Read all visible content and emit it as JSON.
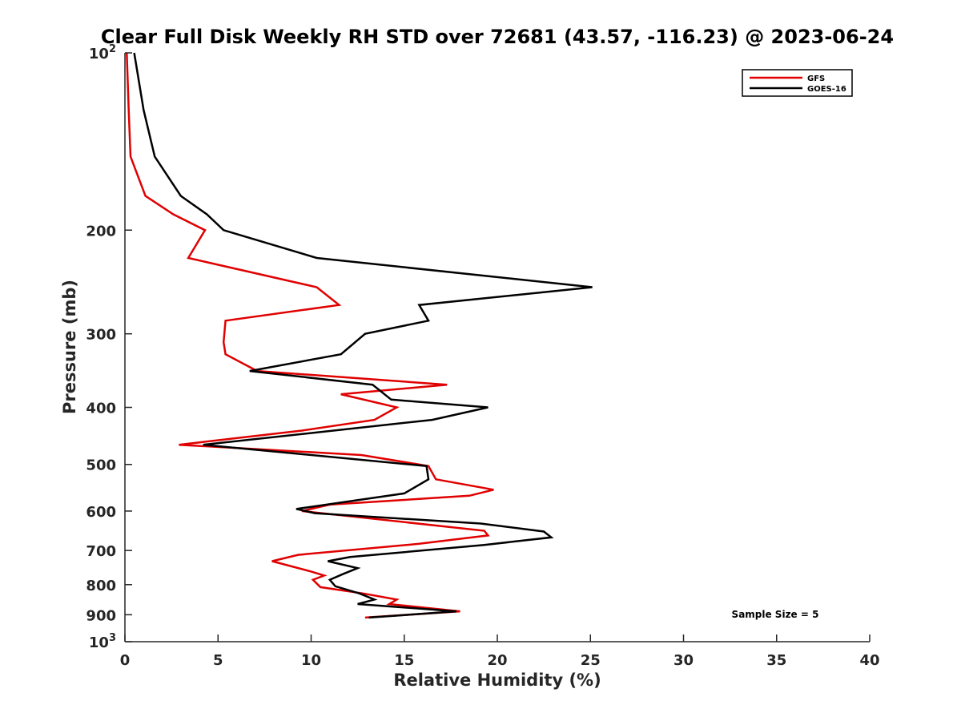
{
  "chart_data": {
    "type": "line",
    "title": "Clear Full Disk Weekly RH STD over 72681 (43.57, -116.23) @ 2023-06-24",
    "xlabel": "Relative Humidity (%)",
    "ylabel": "Pressure (mb)",
    "xlim": [
      0,
      40
    ],
    "ylim": [
      100,
      1000
    ],
    "y_scale": "log",
    "y_reversed": true,
    "x_ticks": [
      0,
      5,
      10,
      15,
      20,
      25,
      30,
      35,
      40
    ],
    "x_tick_labels": [
      "0",
      "5",
      "10",
      "15",
      "20",
      "25",
      "30",
      "35",
      "40"
    ],
    "y_ticks": [
      100,
      200,
      300,
      400,
      500,
      600,
      700,
      800,
      900,
      1000
    ],
    "y_tick_labels": [
      {
        "base": "10",
        "exp": "2"
      },
      {
        "base": "200",
        "exp": ""
      },
      {
        "base": "300",
        "exp": ""
      },
      {
        "base": "400",
        "exp": ""
      },
      {
        "base": "500",
        "exp": ""
      },
      {
        "base": "600",
        "exp": ""
      },
      {
        "base": "700",
        "exp": ""
      },
      {
        "base": "800",
        "exp": ""
      },
      {
        "base": "900",
        "exp": ""
      },
      {
        "base": "10",
        "exp": "3"
      }
    ],
    "grid": false,
    "legend_position": "top-right",
    "annotation": "Sample Size = 5",
    "series": [
      {
        "name": "GFS",
        "color": "#e00000",
        "points": [
          [
            0.1,
            100
          ],
          [
            0.2,
            125
          ],
          [
            0.3,
            150
          ],
          [
            1.1,
            175
          ],
          [
            2.6,
            188
          ],
          [
            4.3,
            200
          ],
          [
            3.4,
            223
          ],
          [
            10.3,
            250
          ],
          [
            11.5,
            268
          ],
          [
            5.4,
            285
          ],
          [
            5.3,
            310
          ],
          [
            5.4,
            325
          ],
          [
            7.1,
            347
          ],
          [
            17.3,
            366
          ],
          [
            11.6,
            380
          ],
          [
            14.6,
            400
          ],
          [
            13.4,
            420
          ],
          [
            9.5,
            438
          ],
          [
            2.9,
            463
          ],
          [
            12.7,
            482
          ],
          [
            16.3,
            503
          ],
          [
            16.7,
            530
          ],
          [
            19.8,
            552
          ],
          [
            18.5,
            565
          ],
          [
            11.0,
            585
          ],
          [
            9.5,
            600
          ],
          [
            19.3,
            648
          ],
          [
            19.5,
            660
          ],
          [
            15.8,
            682
          ],
          [
            9.3,
            712
          ],
          [
            7.9,
            730
          ],
          [
            10.0,
            760
          ],
          [
            10.7,
            772
          ],
          [
            10.1,
            785
          ],
          [
            10.5,
            808
          ],
          [
            12.8,
            828
          ],
          [
            14.6,
            848
          ],
          [
            14.2,
            863
          ],
          [
            18.0,
            888
          ],
          [
            12.9,
            910
          ]
        ]
      },
      {
        "name": "GOES-16",
        "color": "#000000",
        "points": [
          [
            0.5,
            100
          ],
          [
            1.0,
            125
          ],
          [
            1.6,
            150
          ],
          [
            3.0,
            175
          ],
          [
            4.4,
            188
          ],
          [
            5.3,
            200
          ],
          [
            10.3,
            223
          ],
          [
            25.1,
            250
          ],
          [
            15.8,
            268
          ],
          [
            16.3,
            285
          ],
          [
            12.9,
            300
          ],
          [
            11.6,
            325
          ],
          [
            6.7,
            347
          ],
          [
            13.3,
            366
          ],
          [
            14.3,
            388
          ],
          [
            19.5,
            400
          ],
          [
            16.5,
            420
          ],
          [
            4.2,
            463
          ],
          [
            16.2,
            503
          ],
          [
            16.3,
            530
          ],
          [
            15.0,
            560
          ],
          [
            9.2,
            595
          ],
          [
            10.2,
            605
          ],
          [
            19.1,
            630
          ],
          [
            22.5,
            650
          ],
          [
            22.9,
            665
          ],
          [
            19.3,
            685
          ],
          [
            12.1,
            718
          ],
          [
            10.9,
            730
          ],
          [
            12.5,
            750
          ],
          [
            11.7,
            768
          ],
          [
            11.0,
            785
          ],
          [
            11.3,
            805
          ],
          [
            12.6,
            828
          ],
          [
            13.4,
            848
          ],
          [
            12.5,
            863
          ],
          [
            17.8,
            888
          ],
          [
            13.1,
            910
          ]
        ]
      }
    ]
  }
}
